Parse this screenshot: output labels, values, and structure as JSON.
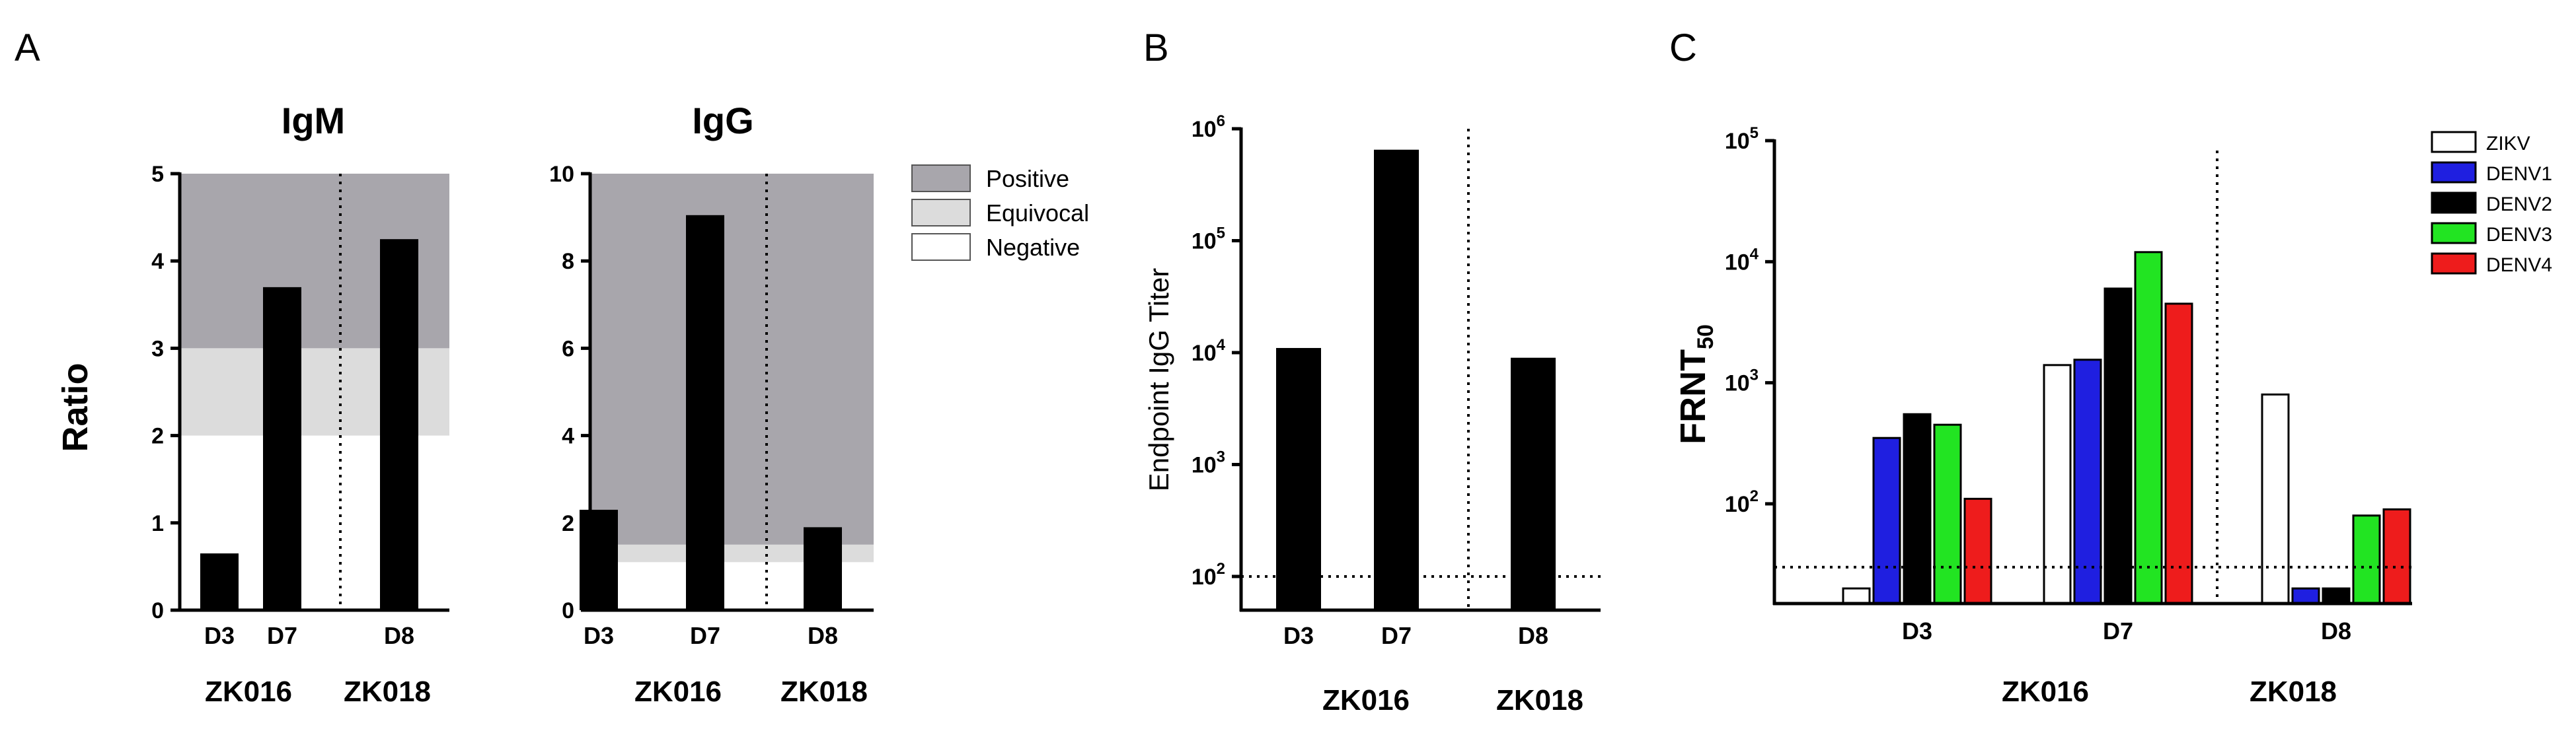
{
  "panels": {
    "A": "A",
    "B": "B",
    "C": "C"
  },
  "chart_data": [
    {
      "id": "igm",
      "type": "bar",
      "title": "IgM",
      "ylabel": "Ratio",
      "xlabel": "",
      "ylim": [
        0,
        5
      ],
      "yticks": [
        0,
        1,
        2,
        3,
        4,
        5
      ],
      "categories": [
        "D3",
        "D7",
        "D8"
      ],
      "values": [
        0.65,
        3.7,
        4.25
      ],
      "groups": [
        {
          "name": "ZK016",
          "categories": [
            "D3",
            "D7"
          ]
        },
        {
          "name": "ZK018",
          "categories": [
            "D8"
          ]
        }
      ],
      "bands": [
        {
          "label": "Positive",
          "from": 3,
          "to": 5,
          "color": "#a8a6ac"
        },
        {
          "label": "Equivocal",
          "from": 2,
          "to": 3,
          "color": "#dcdcdc"
        }
      ],
      "bar_color": "#000000"
    },
    {
      "id": "igg",
      "type": "bar",
      "title": "IgG",
      "ylabel": "",
      "xlabel": "",
      "ylim": [
        0,
        10
      ],
      "yticks": [
        0,
        2,
        4,
        6,
        8,
        10
      ],
      "categories": [
        "D3",
        "D7",
        "D8"
      ],
      "values": [
        2.3,
        9.05,
        1.9
      ],
      "groups": [
        {
          "name": "ZK016",
          "categories": [
            "D3",
            "D7"
          ]
        },
        {
          "name": "ZK018",
          "categories": [
            "D8"
          ]
        }
      ],
      "bands": [
        {
          "label": "Positive",
          "from": 1.5,
          "to": 10,
          "color": "#a8a6ac"
        },
        {
          "label": "Equivocal",
          "from": 1.1,
          "to": 1.5,
          "color": "#dcdcdc"
        }
      ],
      "bar_color": "#000000",
      "legend": [
        {
          "label": "Positive",
          "color": "#a8a6ac"
        },
        {
          "label": "Equivocal",
          "color": "#dcdcdc"
        },
        {
          "label": "Negative",
          "color": "#ffffff"
        }
      ]
    },
    {
      "id": "endpoint",
      "type": "bar",
      "title": "",
      "ylabel": "Endpoint IgG Titer",
      "xlabel": "",
      "yscale": "log",
      "ylim": [
        50,
        1000000
      ],
      "yticks": [
        {
          "value": 100,
          "base": "10",
          "exp": "2"
        },
        {
          "value": 1000,
          "base": "10",
          "exp": "3"
        },
        {
          "value": 10000,
          "base": "10",
          "exp": "4"
        },
        {
          "value": 100000,
          "base": "10",
          "exp": "5"
        },
        {
          "value": 1000000,
          "base": "10",
          "exp": "6"
        }
      ],
      "categories": [
        "D3",
        "D7",
        "D8"
      ],
      "values": [
        11000,
        650000,
        9000
      ],
      "groups": [
        {
          "name": "ZK016",
          "categories": [
            "D3",
            "D7"
          ]
        },
        {
          "name": "ZK018",
          "categories": [
            "D8"
          ]
        }
      ],
      "threshold": 100,
      "bar_color": "#000000"
    },
    {
      "id": "frnt",
      "type": "bar",
      "title": "",
      "ylabel": "FRNT",
      "ylabel_sub": "50",
      "xlabel": "",
      "yscale": "log",
      "ylim": [
        15,
        100000
      ],
      "yticks": [
        {
          "value": 100,
          "base": "10",
          "exp": "2"
        },
        {
          "value": 1000,
          "base": "10",
          "exp": "3"
        },
        {
          "value": 10000,
          "base": "10",
          "exp": "4"
        },
        {
          "value": 100000,
          "base": "10",
          "exp": "5"
        }
      ],
      "categories": [
        "D3",
        "D7",
        "D8"
      ],
      "groups": [
        {
          "name": "ZK016",
          "categories": [
            "D3",
            "D7"
          ]
        },
        {
          "name": "ZK018",
          "categories": [
            "D8"
          ]
        }
      ],
      "threshold": 30,
      "series": [
        {
          "name": "ZIKV",
          "color": "#ffffff",
          "values": [
            20,
            1400,
            800
          ]
        },
        {
          "name": "DENV1",
          "color": "#1f1fe0",
          "values": [
            350,
            1550,
            20
          ]
        },
        {
          "name": "DENV2",
          "color": "#000000",
          "values": [
            550,
            6000,
            20
          ]
        },
        {
          "name": "DENV3",
          "color": "#22e422",
          "values": [
            450,
            12000,
            80
          ]
        },
        {
          "name": "DENV4",
          "color": "#ee1c1c",
          "values": [
            110,
            4500,
            90
          ]
        }
      ]
    }
  ]
}
